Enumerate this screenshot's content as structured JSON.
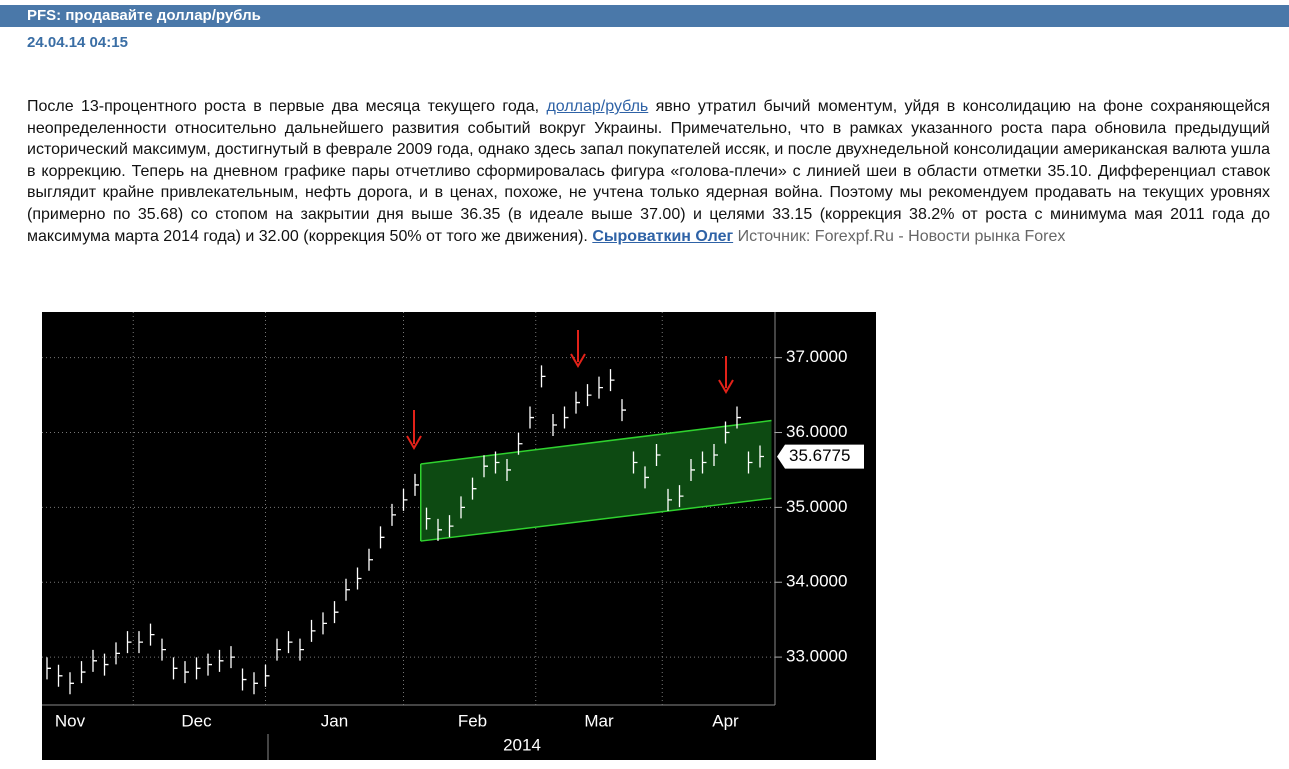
{
  "header": {
    "title": "PFS: продавайте доллар/рубль",
    "date": "24.04.14 04:15"
  },
  "article": {
    "text_before": "После 13-процентного роста в первые два месяца текущего года,",
    "link": "доллар/рубль",
    "text_after": "явно утратил бычий моментум, уйдя в консолидацию на фоне сохраняющейся неопределенности относительно дальнейшего развития событий вокруг Украины. Примечательно, что в рамках указанного роста пара обновила предыдущий исторический максимум, достигнутый в феврале 2009 года, однако здесь запал покупателей иссяк, и после двухнедельной консолидации американская валюта ушла в коррекцию. Теперь на дневном графике пары отчетливо сформировалась фигура «голова-плечи» с линией шеи в области отметки 35.10. Дифференциал ставок выглядит крайне привлекательным, нефть дорога, и в ценах, похоже, не учтена только ядерная война. Поэтому мы рекомендуем продавать на текущих уровнях (примерно по 35.68) со стопом на закрытии дня выше 36.35 (в идеале выше 37.00) и целями 33.15 (коррекция 38.2% от роста с минимума мая 2011 года до максимума марта 2014 года) и 32.00 (коррекция 50% от того же движения).",
    "author": "Сыроваткин Олег",
    "source": "Источник: Forexpf.Ru - Новости рынка Forex"
  },
  "chart_data": {
    "type": "price-bars",
    "categories": [
      null,
      null,
      "Nov",
      null,
      null,
      null,
      null,
      null,
      null,
      null,
      null,
      null,
      null,
      "Dec",
      null,
      null,
      null,
      null,
      null,
      null,
      null,
      null,
      null,
      null,
      null,
      "Jan",
      null,
      null,
      null,
      null,
      null,
      null,
      null,
      null,
      null,
      null,
      null,
      "Feb",
      null,
      null,
      null,
      null,
      null,
      null,
      null,
      null,
      null,
      null,
      "Mar",
      null,
      null,
      null,
      null,
      null,
      null,
      null,
      null,
      null,
      null,
      "Apr",
      null,
      null,
      null
    ],
    "values": [
      32.85,
      32.75,
      32.65,
      32.8,
      32.95,
      32.9,
      33.05,
      33.2,
      33.2,
      33.3,
      33.1,
      32.85,
      32.8,
      32.85,
      32.9,
      32.95,
      33.0,
      32.7,
      32.65,
      32.75,
      33.1,
      33.2,
      33.1,
      33.35,
      33.45,
      33.6,
      33.9,
      34.05,
      34.3,
      34.6,
      34.9,
      35.1,
      35.3,
      34.85,
      34.7,
      34.75,
      35.0,
      35.25,
      35.55,
      35.6,
      35.5,
      35.85,
      36.2,
      36.75,
      36.1,
      36.2,
      36.4,
      36.5,
      36.6,
      36.7,
      36.3,
      35.6,
      35.4,
      35.7,
      35.1,
      35.15,
      35.5,
      35.6,
      35.7,
      36.0,
      36.2,
      35.6,
      35.68
    ],
    "color": "#ffffff",
    "year_label": "2014",
    "last_price": {
      "value": 35.6775,
      "label": "35.6775"
    },
    "channel": {
      "x": [
        32.5,
        63
      ],
      "upper": [
        35.58,
        36.16
      ],
      "lower": [
        34.55,
        35.12
      ],
      "color": "#2fd22f",
      "fill": "#0d4a12"
    },
    "ylim": [
      32.36,
      37.61
    ],
    "yticks": [
      {
        "value": 33,
        "label": "33.0000"
      },
      {
        "value": 34,
        "label": "34.0000"
      },
      {
        "value": 35,
        "label": "35.0000"
      },
      {
        "value": 36,
        "label": "36.0000"
      },
      {
        "value": 37,
        "label": "37.0000"
      }
    ],
    "grid": true
  }
}
